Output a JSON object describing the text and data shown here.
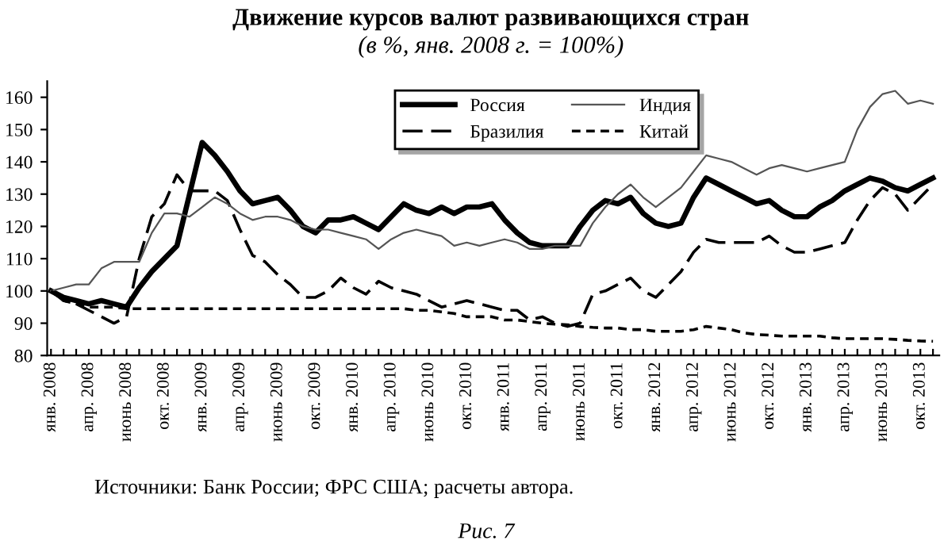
{
  "chart_data": {
    "type": "line",
    "title": "Движение курсов валют развивающихся стран",
    "subtitle": "(в %, янв. 2008 г. = 100%)",
    "categories": [
      "янв. 2008",
      null,
      null,
      "апр. 2008",
      null,
      null,
      "июнь 2008",
      null,
      null,
      "окт. 2008",
      null,
      null,
      "янв. 2009",
      null,
      null,
      "апр. 2009",
      null,
      null,
      "июнь 2009",
      null,
      null,
      "окт. 2009",
      null,
      null,
      "янв. 2010",
      null,
      null,
      "апр. 2010",
      null,
      null,
      "июнь 2010",
      null,
      null,
      "окт. 2010",
      null,
      null,
      "янв. 2011",
      null,
      null,
      "апр. 2011",
      null,
      null,
      "июнь 2011",
      null,
      null,
      "окт. 2011",
      null,
      null,
      "янв. 2012",
      null,
      null,
      "апр. 2012",
      null,
      null,
      "июнь 2012",
      null,
      null,
      "окт. 2012",
      null,
      null,
      "янв. 2013",
      null,
      null,
      "апр. 2013",
      null,
      null,
      "июнь 2013",
      null,
      null,
      "окт. 2013",
      null
    ],
    "series": [
      {
        "name": "Россия",
        "color": "#000000",
        "line_style": "solid",
        "values": [
          100,
          98,
          97,
          96,
          97,
          96,
          95,
          101,
          106,
          110,
          114,
          130,
          146,
          142,
          137,
          131,
          127,
          128,
          129,
          125,
          120,
          118,
          122,
          122,
          123,
          121,
          119,
          123,
          127,
          125,
          124,
          126,
          124,
          126,
          126,
          127,
          122,
          118,
          115,
          114,
          114,
          114,
          120,
          125,
          128,
          127,
          129,
          124,
          121,
          120,
          121,
          129,
          135,
          133,
          131,
          129,
          127,
          128,
          125,
          123,
          123,
          126,
          128,
          131,
          133,
          135,
          134,
          132,
          131,
          133,
          135
        ]
      },
      {
        "name": "Бразилия",
        "color": "#000000",
        "line_style": "dashed",
        "values": [
          100,
          97,
          96,
          94,
          92,
          90,
          92,
          110,
          123,
          127,
          136,
          131,
          131,
          131,
          128,
          119,
          111,
          109,
          105,
          102,
          98,
          98,
          100,
          104,
          101,
          99,
          103,
          101,
          100,
          99,
          97,
          95,
          96,
          97,
          96,
          95,
          94,
          94,
          91,
          92,
          90,
          89,
          90,
          99,
          100,
          102,
          104,
          100,
          98,
          102,
          106,
          112,
          116,
          115,
          115,
          115,
          115,
          117,
          114,
          112,
          112,
          113,
          114,
          115,
          122,
          128,
          132,
          130,
          125,
          129,
          133
        ]
      },
      {
        "name": "Индия",
        "color": "#555555",
        "line_style": "solid",
        "values": [
          100,
          101,
          102,
          102,
          107,
          109,
          109,
          109,
          118,
          124,
          124,
          123,
          126,
          129,
          127,
          124,
          122,
          123,
          123,
          122,
          120,
          119,
          119,
          118,
          117,
          116,
          113,
          116,
          118,
          119,
          118,
          117,
          114,
          115,
          114,
          115,
          116,
          115,
          113,
          113,
          114,
          114,
          114,
          121,
          126,
          130,
          133,
          129,
          126,
          129,
          132,
          137,
          142,
          141,
          140,
          138,
          136,
          138,
          139,
          138,
          137,
          138,
          139,
          140,
          150,
          157,
          161,
          162,
          158,
          159,
          158
        ]
      },
      {
        "name": "Китай",
        "color": "#000000",
        "line_style": "dotted",
        "values": [
          100,
          97,
          96,
          95,
          95,
          95,
          94.5,
          94.5,
          94.5,
          94.5,
          94.5,
          94.5,
          94.5,
          94.5,
          94.5,
          94.5,
          94.5,
          94.5,
          94.5,
          94.5,
          94.5,
          94.5,
          94.5,
          94.5,
          94.5,
          94.5,
          94.5,
          94.5,
          94.5,
          94,
          94,
          93.5,
          93,
          92,
          92,
          92,
          91,
          91,
          90.5,
          90,
          89.7,
          89.5,
          89,
          88.7,
          88.5,
          88.5,
          88,
          88,
          87.5,
          87.5,
          87.5,
          88,
          89,
          88.5,
          88,
          87,
          86.5,
          86.3,
          86,
          86,
          86,
          86,
          85.5,
          85.2,
          85.2,
          85.2,
          85.2,
          85,
          84.7,
          84.5,
          84.4
        ]
      }
    ],
    "ylim": [
      80,
      165
    ],
    "yticks": [
      80,
      90,
      100,
      110,
      120,
      130,
      140,
      150,
      160
    ],
    "grid": false,
    "legend": "top",
    "marker": "none",
    "annotations": [
      "Источники: Банк России; ФРС США; расчеты автора.",
      "Рис. 7"
    ]
  }
}
